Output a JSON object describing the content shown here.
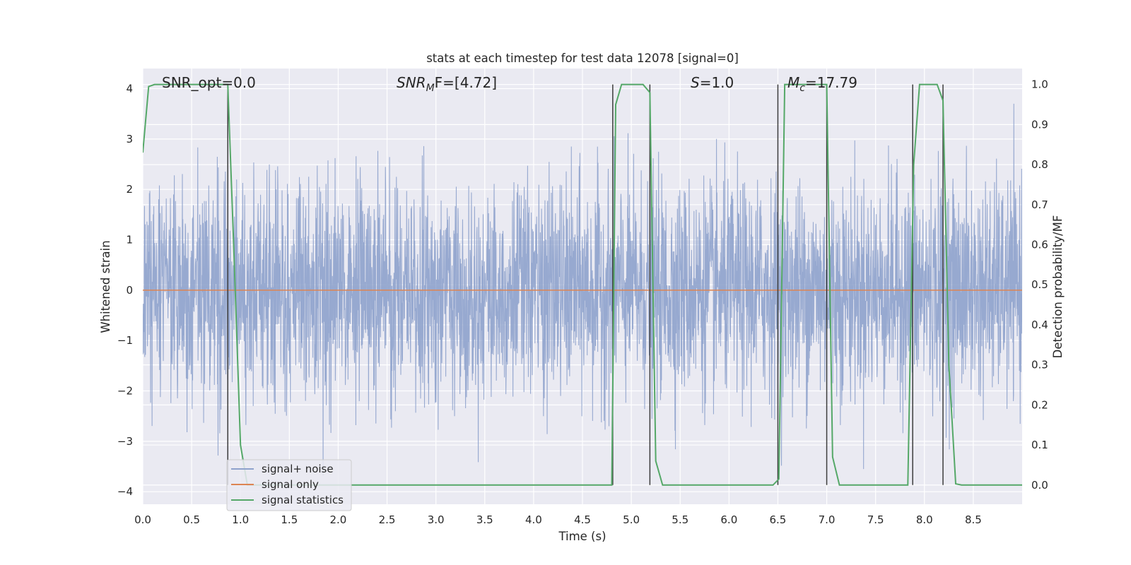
{
  "chart_data": {
    "type": "line",
    "title": "stats at each timestep for test data 12078 [signal=0]",
    "xlabel": "Time (s)",
    "ylabel": "Whitened strain",
    "y2label": "Detection probability/MF",
    "xlim": [
      0.0,
      9.0
    ],
    "ylim": [
      -4.25,
      4.4
    ],
    "y2lim": [
      -0.048,
      1.04
    ],
    "xticks": [
      "0.0",
      "0.5",
      "1.0",
      "1.5",
      "2.0",
      "2.5",
      "3.0",
      "3.5",
      "4.0",
      "4.5",
      "5.0",
      "5.5",
      "6.0",
      "6.5",
      "7.0",
      "7.5",
      "8.0",
      "8.5"
    ],
    "yticks": [
      "4",
      "3",
      "2",
      "1",
      "0",
      "−1",
      "−2",
      "−3",
      "−4"
    ],
    "y2ticks": [
      "1.0",
      "0.9",
      "0.8",
      "0.7",
      "0.6",
      "0.5",
      "0.4",
      "0.3",
      "0.2",
      "0.1",
      "0.0"
    ],
    "grid": true,
    "legend_position": "lower-left",
    "annotations": {
      "snr_opt": "SNR_opt=0.0",
      "snr_mf_main": "SNR",
      "snr_mf_sub": "M",
      "snr_mf_rest": "F=[4.72]",
      "s_main": "S",
      "s_rest": "=1.0",
      "mc_main": "M",
      "mc_sub": "c",
      "mc_rest": "=17.79"
    },
    "series": [
      {
        "name": "signal+ noise",
        "color": "#8ea2cc",
        "axis": "left",
        "description_values": "noise trace spanning approximately −4 to 3.7 across the full 9 s"
      },
      {
        "name": "signal only",
        "color": "#dd8452",
        "axis": "left",
        "x": [
          0.0,
          9.0
        ],
        "y": [
          0.0,
          0.0
        ]
      },
      {
        "name": "signal statistics",
        "color": "#55a868",
        "axis": "right",
        "x": [
          0.0,
          0.06,
          0.12,
          0.87,
          0.93,
          1.0,
          1.07,
          4.8,
          4.84,
          4.9,
          5.12,
          5.19,
          5.25,
          5.32,
          6.45,
          6.51,
          6.57,
          7.0,
          7.06,
          7.13,
          7.83,
          7.89,
          7.95,
          8.13,
          8.19,
          8.25,
          8.32,
          8.38,
          9.0
        ],
        "y": [
          0.83,
          0.995,
          1.0,
          1.0,
          0.6,
          0.1,
          0.0,
          0.0,
          0.95,
          1.0,
          1.0,
          0.98,
          0.06,
          0.0,
          0.0,
          0.015,
          1.0,
          1.0,
          0.07,
          0.0,
          0.0,
          0.8,
          1.0,
          1.0,
          0.96,
          0.3,
          0.003,
          0.0,
          0.0
        ]
      }
    ],
    "vlines_x": [
      0.87,
      4.81,
      5.19,
      6.5,
      7.0,
      7.88,
      8.19
    ]
  },
  "colors": {
    "plot_background": "#eaeaf2",
    "grid": "#ffffff",
    "vline": "#3c3c3c",
    "noise": "#8ea2cc",
    "signal_only": "#dd8452",
    "statistics": "#55a868"
  },
  "legend": {
    "items": [
      {
        "label": "signal+ noise",
        "color": "#8ea2cc"
      },
      {
        "label": "signal only",
        "color": "#dd8452"
      },
      {
        "label": "signal statistics",
        "color": "#55a868"
      }
    ]
  }
}
